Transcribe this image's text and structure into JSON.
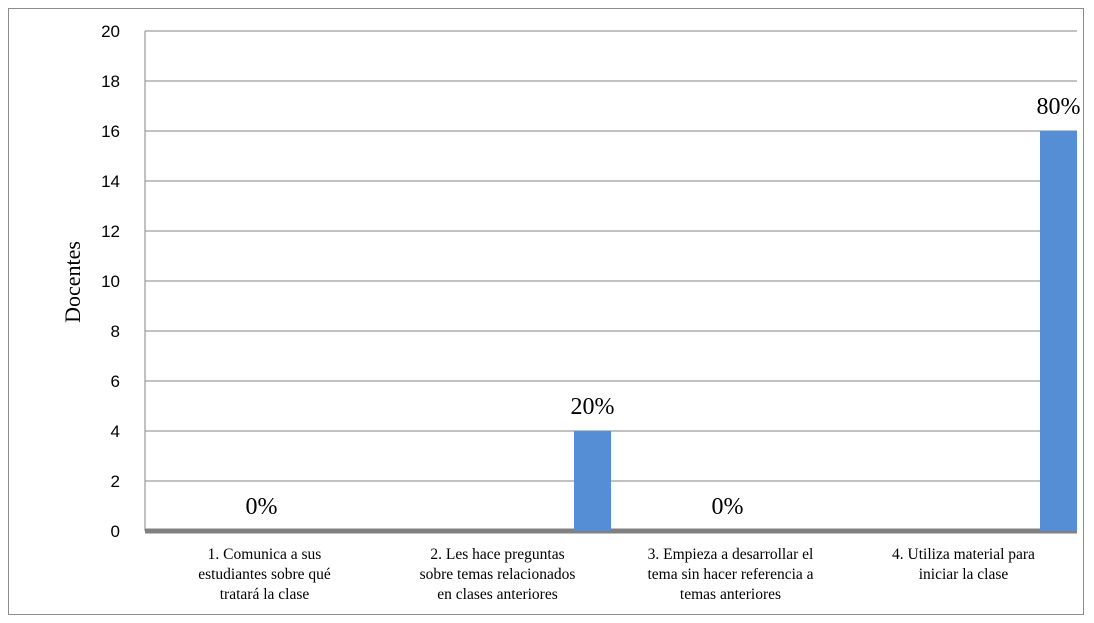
{
  "chart_data": {
    "type": "bar",
    "title": "",
    "xlabel": "",
    "ylabel": "Docentes",
    "ylim": [
      0,
      20
    ],
    "yticks": [
      0,
      2,
      4,
      6,
      8,
      10,
      12,
      14,
      16,
      18,
      20
    ],
    "grid": true,
    "legend": "none",
    "bar_color": "#558ed5",
    "baseline_color": "#808080",
    "categories": [
      [
        "1. Comunica a sus",
        "estudiantes sobre qué",
        "tratará la clase"
      ],
      [
        "2. Les hace preguntas",
        "sobre temas relacionados",
        "en clases anteriores"
      ],
      [
        "3. Empieza a desarrollar el",
        "tema sin hacer referencia a",
        "temas anteriores"
      ],
      [
        "4. Utiliza material para",
        "iniciar la clase"
      ]
    ],
    "values": [
      0,
      4,
      0,
      16
    ],
    "data_labels": [
      "0%",
      "20%",
      "0%",
      "80%"
    ]
  }
}
